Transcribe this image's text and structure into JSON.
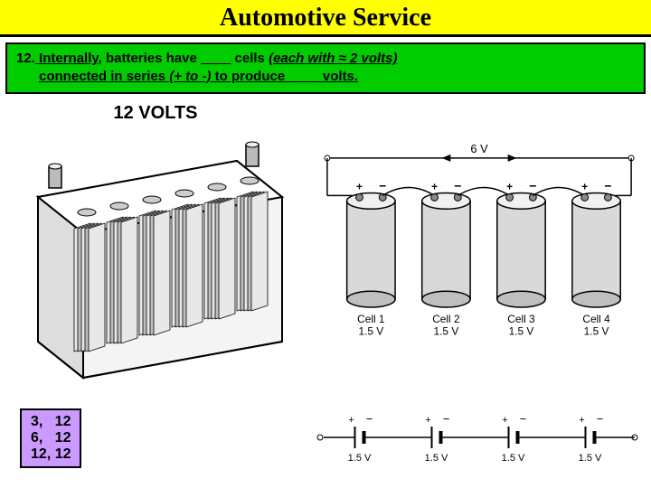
{
  "colors": {
    "title_bg": "#ffff00",
    "question_bg": "#00cc00",
    "answers_bg": "#cc99ff",
    "line": "#000000",
    "fill_light": "#f4f4f4",
    "fill_dark": "#555555"
  },
  "title": "Automotive Service",
  "question": {
    "number": "12.",
    "prefix": " Internally",
    "seg1": ", batteries have ",
    "blank1": "____",
    "seg2": " cells ",
    "paren": "(each with ≈ 2 volts)",
    "line2_pre": "connected in series ",
    "line2_paren": "(+ to -)",
    "line2_mid": " to produce ",
    "blank2": "____",
    "line2_end": " volts."
  },
  "battery": {
    "label": "12 VOLTS",
    "num_cells": 6
  },
  "series_cells": {
    "total_v": "6 V",
    "cells": [
      {
        "name": "Cell 1",
        "v": "1.5 V"
      },
      {
        "name": "Cell 2",
        "v": "1.5 V"
      },
      {
        "name": "Cell 3",
        "v": "1.5 V"
      },
      {
        "name": "Cell 4",
        "v": "1.5 V"
      }
    ],
    "pos": "+",
    "neg": "−"
  },
  "schematic_cells": [
    {
      "v": "1.5 V"
    },
    {
      "v": "1.5 V"
    },
    {
      "v": "1.5 V"
    },
    {
      "v": "1.5 V"
    }
  ],
  "answers": [
    "3,   12",
    "6,   12",
    "12, 12"
  ]
}
